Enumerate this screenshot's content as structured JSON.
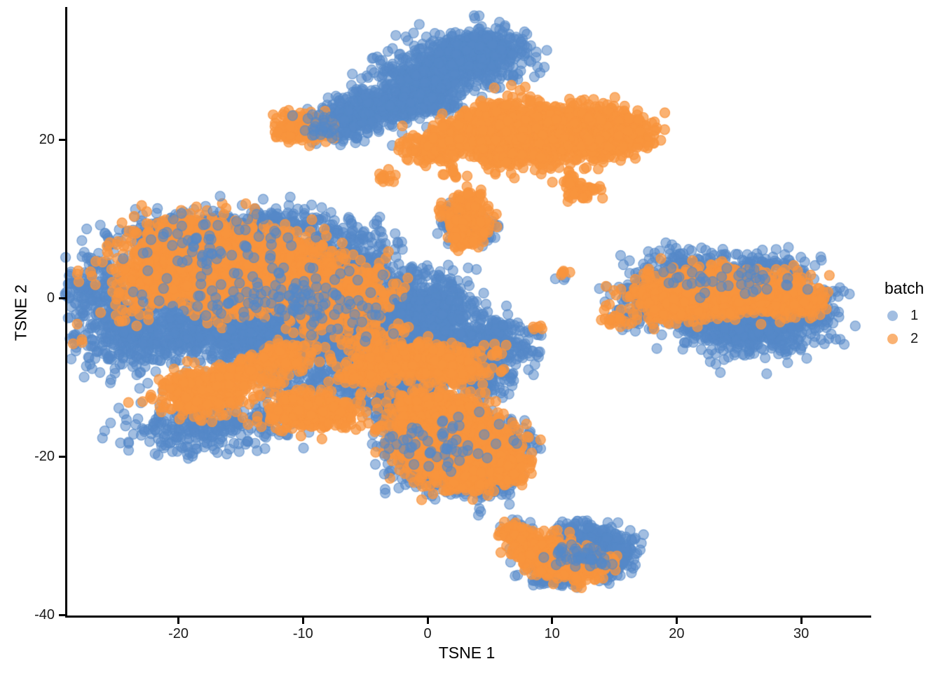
{
  "chart_data": {
    "type": "scatter",
    "title": "",
    "xlabel": "TSNE 1",
    "ylabel": "TSNE 2",
    "x_ticks": [
      -20,
      -10,
      0,
      10,
      20,
      30
    ],
    "y_ticks": [
      20,
      0,
      -20,
      -40
    ],
    "xlim": [
      -29.1,
      35.5
    ],
    "ylim": [
      -40.3,
      36.6
    ],
    "grid": false,
    "background": "#ffffff",
    "legend": {
      "title": "batch",
      "position": "right",
      "entries": [
        {
          "label": "1",
          "color": "#5589C8",
          "opacity": 0.55
        },
        {
          "label": "2",
          "color": "#F8943D",
          "opacity": 0.72
        }
      ]
    },
    "point_style": {
      "radius": 7,
      "opacity": {
        "1": 0.55,
        "2": 0.72
      }
    },
    "colors": {
      "1": "#5589C8",
      "2": "#F8943D"
    },
    "cluster_columns": [
      "batch",
      "cx",
      "cy",
      "sx",
      "sy",
      "n"
    ],
    "clusters": [
      [
        "1",
        -26.5,
        0.5,
        1.6,
        3.0,
        220
      ],
      [
        "1",
        -23.5,
        -4.5,
        2.2,
        2.4,
        320
      ],
      [
        "1",
        -21.0,
        8.0,
        1.8,
        1.3,
        160
      ],
      [
        "1",
        -13.0,
        9.0,
        3.5,
        1.4,
        260
      ],
      [
        "1",
        -6.5,
        5.0,
        2.5,
        2.0,
        300
      ],
      [
        "1",
        -17.5,
        -3.5,
        3.0,
        2.2,
        480
      ],
      [
        "1",
        -11.5,
        -4.5,
        3.0,
        2.4,
        550
      ],
      [
        "1",
        -5.5,
        -2.5,
        2.5,
        2.4,
        480
      ],
      [
        "1",
        -1.0,
        -4.5,
        2.4,
        2.4,
        450
      ],
      [
        "1",
        2.5,
        -7.0,
        2.2,
        1.8,
        330
      ],
      [
        "1",
        0.5,
        -0.5,
        2.0,
        1.8,
        260
      ],
      [
        "1",
        -19.5,
        -16.5,
        2.4,
        1.9,
        200
      ],
      [
        "1",
        -14.0,
        -15.5,
        2.2,
        1.6,
        120
      ],
      [
        "1",
        -8.0,
        -10.0,
        2.5,
        2.0,
        200
      ],
      [
        "1",
        -2.5,
        -11.5,
        2.0,
        1.5,
        150
      ],
      [
        "1",
        4.5,
        -10.5,
        1.5,
        1.5,
        120
      ],
      [
        "1",
        5.5,
        -4.5,
        1.2,
        1.2,
        100
      ],
      [
        "1",
        7.5,
        -6.8,
        0.8,
        0.5,
        30
      ],
      [
        "1",
        -28.0,
        1.5,
        0.5,
        1.8,
        10
      ],
      [
        "1",
        -6.5,
        22.3,
        1.5,
        1.3,
        200
      ],
      [
        "1",
        -3.8,
        24.3,
        1.6,
        1.2,
        220
      ],
      [
        "1",
        -0.5,
        27.0,
        2.0,
        1.6,
        320
      ],
      [
        "1",
        2.7,
        30.0,
        2.4,
        1.7,
        480
      ],
      [
        "1",
        4.8,
        31.8,
        1.4,
        1.2,
        180
      ],
      [
        "1",
        0.5,
        24.5,
        1.0,
        0.8,
        60
      ],
      [
        "1",
        20.5,
        3.8,
        1.8,
        1.1,
        140
      ],
      [
        "1",
        26.5,
        3.4,
        2.2,
        1.2,
        170
      ],
      [
        "1",
        26.5,
        -3.8,
        2.6,
        1.7,
        520
      ],
      [
        "1",
        22.5,
        -2.6,
        1.6,
        1.5,
        200
      ],
      [
        "1",
        17.3,
        0.0,
        1.3,
        1.9,
        130
      ],
      [
        "1",
        30.8,
        -1.2,
        1.1,
        1.6,
        90
      ],
      [
        "1",
        32.3,
        0.6,
        0.25,
        0.25,
        3
      ],
      [
        "1",
        15.9,
        -2.6,
        0.5,
        0.4,
        10
      ],
      [
        "1",
        -0.6,
        -16.3,
        1.6,
        1.3,
        220
      ],
      [
        "1",
        2.6,
        -15.3,
        1.4,
        1.1,
        160
      ],
      [
        "1",
        0.6,
        -21.5,
        1.6,
        1.5,
        260
      ],
      [
        "1",
        4.2,
        -23.2,
        1.4,
        1.1,
        160
      ],
      [
        "1",
        6.3,
        -18.6,
        1.1,
        1.4,
        130
      ],
      [
        "1",
        -2.6,
        -13.2,
        1.2,
        1.0,
        110
      ],
      [
        "1",
        13.3,
        -31.6,
        1.6,
        1.3,
        360
      ],
      [
        "1",
        15.1,
        -33.2,
        0.9,
        1.1,
        110
      ],
      [
        "1",
        7.2,
        -29.2,
        0.8,
        0.6,
        30
      ],
      [
        "1",
        10.3,
        -35.6,
        1.2,
        0.5,
        50
      ],
      [
        "1",
        8.6,
        -33.8,
        0.7,
        0.5,
        25
      ],
      [
        "1",
        12.0,
        -29.3,
        1.2,
        0.6,
        40
      ],
      [
        "1",
        9.5,
        -32.0,
        1.5,
        1.0,
        60
      ],
      [
        "1",
        2.3,
        9.5,
        0.7,
        1.4,
        70
      ],
      [
        "1",
        4.7,
        8.6,
        0.5,
        0.9,
        40
      ],
      [
        "1",
        5.0,
        21.0,
        1.5,
        1.0,
        25
      ],
      [
        "1",
        12.0,
        21.5,
        1.5,
        1.0,
        20
      ],
      [
        "1",
        8.6,
        -4.3,
        0.5,
        0.4,
        8
      ],
      [
        "1",
        5.4,
        -7.2,
        0.6,
        0.5,
        12
      ],
      [
        "1",
        4.3,
        -27.1,
        0.3,
        0.3,
        3
      ],
      [
        "1",
        -3.7,
        -24.3,
        0.2,
        0.2,
        2
      ],
      [
        "1",
        10.8,
        2.5,
        0.3,
        0.3,
        3
      ],
      [
        "2",
        -9.9,
        21.6,
        1.1,
        0.9,
        160
      ],
      [
        "2",
        -11.3,
        20.9,
        0.5,
        0.5,
        30
      ],
      [
        "2",
        0.6,
        18.8,
        1.4,
        0.9,
        130
      ],
      [
        "2",
        3.2,
        20.7,
        1.6,
        1.1,
        250
      ],
      [
        "2",
        6.6,
        21.6,
        2.1,
        1.5,
        600
      ],
      [
        "2",
        10.2,
        20.6,
        2.4,
        1.7,
        780
      ],
      [
        "2",
        13.6,
        21.2,
        1.8,
        1.4,
        420
      ],
      [
        "2",
        15.9,
        20.4,
        1.2,
        1.0,
        160
      ],
      [
        "2",
        5.6,
        17.6,
        0.9,
        0.7,
        70
      ],
      [
        "2",
        8.9,
        17.9,
        0.6,
        0.5,
        40
      ],
      [
        "2",
        2.1,
        15.9,
        0.4,
        0.4,
        10
      ],
      [
        "2",
        -3.3,
        15.3,
        0.45,
        0.4,
        14
      ],
      [
        "2",
        3.4,
        10.3,
        0.9,
        1.7,
        200
      ],
      [
        "2",
        2.9,
        7.3,
        0.6,
        0.5,
        40
      ],
      [
        "2",
        11.4,
        14.7,
        0.5,
        0.5,
        22
      ],
      [
        "2",
        13.0,
        13.5,
        0.7,
        0.5,
        30
      ],
      [
        "2",
        11.9,
        12.9,
        0.4,
        0.4,
        10
      ],
      [
        "2",
        -19.0,
        5.8,
        2.6,
        1.9,
        900
      ],
      [
        "2",
        -14.5,
        4.2,
        2.8,
        2.1,
        900
      ],
      [
        "2",
        -10.5,
        1.8,
        2.4,
        1.9,
        550
      ],
      [
        "2",
        -16.0,
        1.2,
        2.4,
        1.6,
        450
      ],
      [
        "2",
        -7.2,
        -0.8,
        1.9,
        1.5,
        280
      ],
      [
        "2",
        -21.5,
        2.6,
        1.4,
        1.4,
        200
      ],
      [
        "2",
        -24.0,
        0.0,
        1.5,
        2.0,
        40
      ],
      [
        "2",
        -5.0,
        2.0,
        1.2,
        1.5,
        60
      ],
      [
        "2",
        -27.5,
        3.0,
        0.5,
        0.8,
        6
      ],
      [
        "2",
        -28.2,
        -5.5,
        0.3,
        0.3,
        3
      ],
      [
        "2",
        -18.0,
        -11.8,
        1.8,
        1.3,
        380
      ],
      [
        "2",
        -15.5,
        -9.5,
        0.8,
        0.7,
        60
      ],
      [
        "2",
        -9.2,
        -14.3,
        1.8,
        1.2,
        380
      ],
      [
        "2",
        -11.8,
        -7.3,
        1.2,
        0.9,
        130
      ],
      [
        "2",
        -1.2,
        -8.0,
        2.6,
        1.1,
        420
      ],
      [
        "2",
        2.2,
        -9.2,
        1.2,
        0.8,
        120
      ],
      [
        "2",
        -5.5,
        -9.8,
        1.0,
        0.7,
        80
      ],
      [
        "2",
        -4.0,
        -5.0,
        2.0,
        1.5,
        60
      ],
      [
        "2",
        -13.0,
        -10.0,
        1.5,
        1.0,
        40
      ],
      [
        "2",
        0.9,
        -14.6,
        2.0,
        1.4,
        420
      ],
      [
        "2",
        3.6,
        -17.6,
        1.7,
        1.4,
        430
      ],
      [
        "2",
        -0.2,
        -19.2,
        1.4,
        1.1,
        230
      ],
      [
        "2",
        5.4,
        -20.6,
        1.2,
        1.4,
        190
      ],
      [
        "2",
        2.1,
        -22.4,
        1.7,
        1.1,
        240
      ],
      [
        "2",
        6.9,
        -21.9,
        0.7,
        0.7,
        60
      ],
      [
        "2",
        -1.9,
        -17.3,
        1.2,
        1.0,
        80
      ],
      [
        "2",
        20.8,
        0.6,
        2.1,
        1.5,
        520
      ],
      [
        "2",
        24.8,
        0.9,
        2.0,
        1.3,
        520
      ],
      [
        "2",
        28.2,
        0.3,
        1.6,
        1.2,
        280
      ],
      [
        "2",
        30.5,
        -0.6,
        0.8,
        0.8,
        60
      ],
      [
        "2",
        15.1,
        -2.9,
        0.5,
        0.4,
        16
      ],
      [
        "2",
        18.9,
        -1.4,
        1.0,
        1.0,
        40
      ],
      [
        "2",
        6.6,
        -29.3,
        0.5,
        0.5,
        40
      ],
      [
        "2",
        7.8,
        -30.3,
        0.7,
        0.7,
        90
      ],
      [
        "2",
        9.2,
        -31.7,
        1.1,
        0.9,
        200
      ],
      [
        "2",
        10.8,
        -33.2,
        1.3,
        1.0,
        280
      ],
      [
        "2",
        12.3,
        -34.3,
        0.9,
        0.7,
        120
      ],
      [
        "2",
        13.5,
        -33.5,
        0.7,
        0.6,
        60
      ],
      [
        "2",
        8.7,
        -3.4,
        0.3,
        0.3,
        5
      ],
      [
        "2",
        10.7,
        3.2,
        0.3,
        0.3,
        5
      ],
      [
        "2",
        5.3,
        -7.0,
        0.6,
        0.5,
        10
      ],
      [
        "1",
        -17.0,
        7.0,
        4.0,
        2.5,
        80
      ],
      [
        "1",
        -9.0,
        -1.0,
        3.0,
        2.0,
        60
      ],
      [
        "1",
        -8.3,
        21.5,
        1.0,
        0.8,
        30
      ],
      [
        "1",
        24.0,
        2.0,
        3.0,
        1.0,
        40
      ],
      [
        "1",
        1.5,
        -18.5,
        2.5,
        1.8,
        60
      ],
      [
        "1",
        12.8,
        -32.5,
        1.2,
        1.0,
        50
      ],
      [
        "1",
        -14.0,
        0.0,
        4.0,
        1.5,
        80
      ]
    ]
  }
}
